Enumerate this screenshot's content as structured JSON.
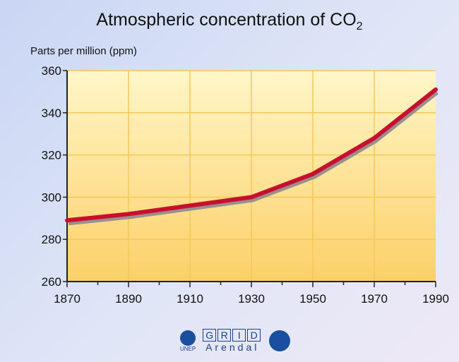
{
  "chart_data": {
    "type": "line",
    "title": "Atmospheric concentration of CO",
    "title_subscript": "2",
    "ylabel": "Parts per million (ppm)",
    "xlabel": "",
    "x": [
      1870,
      1890,
      1910,
      1930,
      1950,
      1970,
      1990
    ],
    "series": [
      {
        "name": "CO2",
        "values": [
          289,
          292,
          296,
          300,
          311,
          328,
          351
        ],
        "color": "#c8102e"
      }
    ],
    "xlim": [
      1870,
      1990
    ],
    "ylim": [
      260,
      360
    ],
    "xticks": [
      1870,
      1890,
      1910,
      1930,
      1950,
      1970,
      1990
    ],
    "yticks": [
      260,
      280,
      300,
      320,
      340,
      360
    ],
    "grid": true
  },
  "logos": {
    "unep": "UNEP",
    "grid": [
      "G",
      "R",
      "I",
      "D"
    ],
    "arendal": "Arendal"
  }
}
